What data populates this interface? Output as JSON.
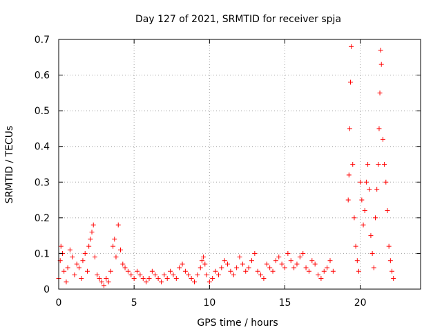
{
  "chart_data": {
    "type": "scatter",
    "title": "Day 127 of 2021, SRMTID for receiver spja",
    "xlabel": "GPS time / hours",
    "ylabel": "SRMTID / TECUs",
    "xlim": [
      0,
      24
    ],
    "ylim": [
      0,
      0.7
    ],
    "xticks": [
      0,
      5,
      10,
      15,
      20
    ],
    "yticks": [
      0,
      0.1,
      0.2,
      0.3,
      0.4,
      0.5,
      0.6,
      0.7
    ],
    "xtick_labels": [
      "0",
      "5",
      "10",
      "15",
      "20"
    ],
    "ytick_labels": [
      "0",
      "0.1",
      "0.2",
      "0.3",
      "0.4",
      "0.5",
      "0.6",
      "0.7"
    ],
    "grid": true,
    "marker": "plus",
    "color": "#ff0000",
    "series": [
      {
        "name": "SRMTID",
        "x": [
          0.0,
          0.1,
          0.15,
          0.25,
          0.35,
          0.5,
          0.6,
          0.75,
          0.9,
          1.05,
          1.2,
          1.35,
          1.5,
          1.6,
          1.75,
          1.9,
          2.0,
          2.1,
          2.2,
          2.3,
          2.4,
          2.55,
          2.7,
          2.85,
          3.0,
          3.15,
          3.3,
          3.45,
          3.6,
          3.7,
          3.8,
          3.95,
          4.1,
          4.25,
          4.4,
          4.6,
          4.8,
          5.0,
          5.2,
          5.4,
          5.6,
          5.8,
          6.0,
          6.2,
          6.4,
          6.6,
          6.8,
          7.0,
          7.2,
          7.4,
          7.6,
          7.8,
          8.0,
          8.2,
          8.4,
          8.6,
          8.8,
          9.0,
          9.2,
          9.4,
          9.5,
          9.6,
          9.7,
          9.8,
          10.0,
          10.2,
          10.4,
          10.6,
          10.8,
          11.0,
          11.2,
          11.4,
          11.6,
          11.8,
          12.0,
          12.2,
          12.4,
          12.6,
          12.8,
          13.0,
          13.2,
          13.4,
          13.6,
          13.8,
          14.0,
          14.2,
          14.4,
          14.6,
          14.8,
          15.0,
          15.2,
          15.4,
          15.6,
          15.8,
          16.0,
          16.2,
          16.4,
          16.6,
          16.8,
          17.0,
          17.2,
          17.4,
          17.6,
          17.8,
          18.0,
          18.2,
          19.2,
          19.25,
          19.3,
          19.35,
          19.4,
          19.5,
          19.6,
          19.7,
          19.8,
          19.9,
          20.0,
          20.1,
          20.2,
          20.3,
          20.4,
          20.5,
          20.6,
          20.7,
          20.8,
          20.9,
          21.0,
          21.1,
          21.2,
          21.25,
          21.3,
          21.35,
          21.4,
          21.5,
          21.6,
          21.7,
          21.8,
          21.9,
          22.0,
          22.1,
          22.2
        ],
        "y": [
          0.03,
          0.08,
          0.12,
          0.1,
          0.05,
          0.02,
          0.06,
          0.11,
          0.09,
          0.04,
          0.07,
          0.06,
          0.03,
          0.08,
          0.1,
          0.05,
          0.12,
          0.14,
          0.16,
          0.18,
          0.09,
          0.04,
          0.03,
          0.02,
          0.01,
          0.03,
          0.02,
          0.05,
          0.12,
          0.14,
          0.09,
          0.18,
          0.11,
          0.07,
          0.06,
          0.05,
          0.04,
          0.03,
          0.05,
          0.04,
          0.03,
          0.02,
          0.03,
          0.05,
          0.04,
          0.03,
          0.02,
          0.04,
          0.03,
          0.05,
          0.04,
          0.03,
          0.06,
          0.07,
          0.05,
          0.04,
          0.03,
          0.02,
          0.04,
          0.06,
          0.08,
          0.09,
          0.07,
          0.04,
          0.02,
          0.03,
          0.05,
          0.04,
          0.06,
          0.08,
          0.07,
          0.05,
          0.04,
          0.06,
          0.09,
          0.07,
          0.05,
          0.06,
          0.08,
          0.1,
          0.05,
          0.04,
          0.03,
          0.07,
          0.06,
          0.05,
          0.08,
          0.09,
          0.07,
          0.06,
          0.1,
          0.08,
          0.06,
          0.07,
          0.09,
          0.1,
          0.06,
          0.05,
          0.08,
          0.07,
          0.04,
          0.03,
          0.05,
          0.06,
          0.08,
          0.05,
          0.25,
          0.32,
          0.45,
          0.58,
          0.68,
          0.35,
          0.2,
          0.12,
          0.08,
          0.05,
          0.3,
          0.25,
          0.18,
          0.22,
          0.3,
          0.35,
          0.28,
          0.15,
          0.1,
          0.06,
          0.2,
          0.28,
          0.35,
          0.45,
          0.55,
          0.67,
          0.63,
          0.42,
          0.35,
          0.3,
          0.22,
          0.12,
          0.08,
          0.05,
          0.03
        ]
      }
    ]
  }
}
